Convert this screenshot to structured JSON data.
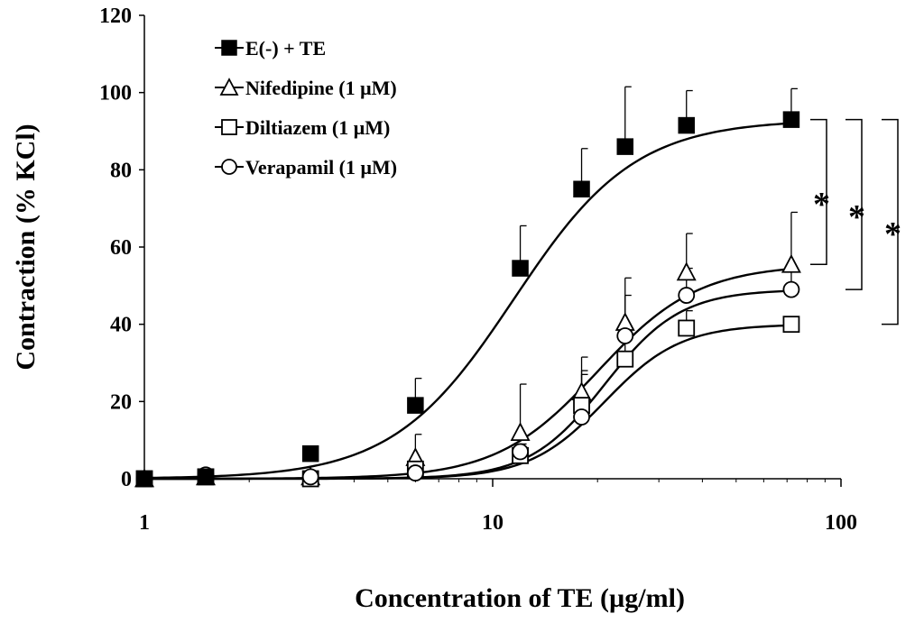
{
  "chart_data": {
    "type": "line",
    "x_scale": "log",
    "xlim": [
      1,
      100
    ],
    "ylim": [
      0,
      120
    ],
    "xlabel": "Concentration of TE (µg/ml)",
    "ylabel": "Contraction (% KCl)",
    "x_ticks": [
      {
        "value": 1,
        "label": "1"
      },
      {
        "value": 10,
        "label": "10"
      },
      {
        "value": 100,
        "label": "100"
      }
    ],
    "y_ticks": [
      {
        "value": 0,
        "label": "0"
      },
      {
        "value": 20,
        "label": "20"
      },
      {
        "value": 40,
        "label": "40"
      },
      {
        "value": 60,
        "label": "60"
      },
      {
        "value": 80,
        "label": "80"
      },
      {
        "value": 100,
        "label": "100"
      },
      {
        "value": 120,
        "label": "120"
      }
    ],
    "legend_position": "top-left",
    "series": [
      {
        "name": "E(-) + TE",
        "marker": "filled-square",
        "color": "#000000",
        "x": [
          1,
          1.5,
          3,
          6,
          12,
          18,
          24,
          36,
          72
        ],
        "y": [
          0,
          0.5,
          6.5,
          19,
          54.5,
          75,
          86,
          91.5,
          93
        ],
        "err": [
          0,
          0,
          1.5,
          7,
          11,
          10.5,
          15.5,
          9,
          8
        ],
        "curve": {
          "bottom": 0,
          "top": 93,
          "ec50": 11.5,
          "hill": 2.5
        }
      },
      {
        "name": "Nifedipine (1 μM)",
        "marker": "open-triangle",
        "color": "#000000",
        "x": [
          1,
          1.5,
          3,
          6,
          12,
          18,
          24,
          36,
          72
        ],
        "y": [
          0,
          0.5,
          0.5,
          5.5,
          12,
          22.5,
          40.5,
          53.5,
          55.5
        ],
        "err": [
          0,
          0,
          0,
          6,
          12.5,
          9,
          11.5,
          10,
          13.5
        ],
        "curve": {
          "bottom": 0,
          "top": 55.5,
          "ec50": 20,
          "hill": 3
        }
      },
      {
        "name": "Diltiazem (1 μM)",
        "marker": "open-square",
        "color": "#000000",
        "x": [
          1,
          1.5,
          3,
          6,
          12,
          18,
          24,
          36,
          72
        ],
        "y": [
          0,
          0.5,
          0,
          2.5,
          6,
          19,
          31,
          39,
          40
        ],
        "err": [
          0,
          0,
          0,
          2,
          2,
          9,
          6,
          4.5,
          0
        ],
        "curve": {
          "bottom": 0,
          "top": 40,
          "ec50": 21,
          "hill": 4
        }
      },
      {
        "name": "Verapamil (1 μM)",
        "marker": "open-circle",
        "color": "#000000",
        "x": [
          1,
          1.5,
          3,
          6,
          12,
          18,
          24,
          36,
          72
        ],
        "y": [
          0,
          1,
          0.5,
          1.5,
          7,
          16,
          37,
          47.5,
          49
        ],
        "err": [
          0,
          0,
          0,
          1,
          2,
          11,
          10.5,
          7,
          5
        ],
        "curve": {
          "bottom": 0,
          "top": 49,
          "ec50": 21,
          "hill": 4
        }
      }
    ],
    "significance": [
      {
        "label": "*",
        "from": 93,
        "to": 55.5
      },
      {
        "label": "*",
        "from": 93,
        "to": 49
      },
      {
        "label": "*",
        "from": 93,
        "to": 40
      }
    ]
  }
}
